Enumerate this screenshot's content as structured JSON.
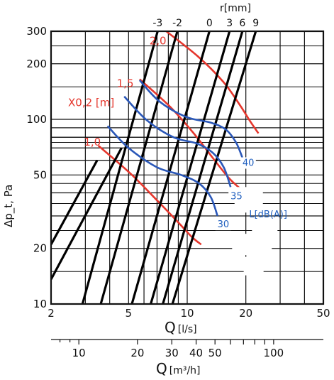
{
  "chart_data": {
    "type": "line",
    "title": "",
    "x_scale": "log",
    "y_scale": "log",
    "xlim": [
      2,
      50
    ],
    "ylim": [
      10,
      300
    ],
    "xlabel": "Q",
    "xlabel_unit": "[l/s]",
    "ylabel": "Δp_t, Pa",
    "x_ticks": [
      "2",
      "5",
      "10",
      "20",
      "50"
    ],
    "x_tick_values": [
      2,
      5,
      10,
      20,
      50
    ],
    "y_ticks": [
      "10",
      "20",
      "50",
      "100",
      "200",
      "300"
    ],
    "y_tick_values": [
      10,
      20,
      50,
      100,
      200,
      300
    ],
    "secondary_x_axis": {
      "label": "Q",
      "unit": "[m³/h]",
      "ticks": [
        "10",
        "20",
        "30",
        "40",
        "50",
        "100"
      ],
      "tick_values": [
        10,
        20,
        30,
        40,
        50,
        100
      ]
    },
    "top_axis": {
      "label": "r[mm]",
      "ticks": [
        "-3",
        "-2",
        "0",
        "3",
        "6",
        "9"
      ]
    },
    "black_lines_label": "r[mm]",
    "black_lines": [
      {
        "name": "-3",
        "x": [
          2.9,
          7.05
        ],
        "y": [
          10,
          300
        ]
      },
      {
        "name": "-2",
        "x": [
          3.6,
          8.9
        ],
        "y": [
          10,
          300
        ]
      },
      {
        "name": "0",
        "x": [
          5.2,
          13.0
        ],
        "y": [
          10,
          300
        ]
      },
      {
        "name": "3",
        "x": [
          6.5,
          16.5
        ],
        "y": [
          10,
          300
        ]
      },
      {
        "name": "6",
        "x": [
          7.5,
          19.2
        ],
        "y": [
          10,
          300
        ]
      },
      {
        "name": "9",
        "x": [
          8.4,
          22.5
        ],
        "y": [
          10,
          300
        ]
      },
      {
        "name": "",
        "x": [
          2.0,
          3.45
        ],
        "y": [
          21,
          60
        ]
      },
      {
        "name": "",
        "x": [
          2.0,
          4.6
        ],
        "y": [
          13.6,
          70
        ]
      }
    ],
    "red_series_label": "X0,2 [m]",
    "red_series": [
      {
        "name": "2,0",
        "x": [
          7.8,
          11.3,
          15.3,
          18.6,
          21.0,
          23.2
        ],
        "y": [
          300,
          220,
          160,
          120,
          98,
          84
        ]
      },
      {
        "name": "1,5",
        "x": [
          5.7,
          8.1,
          10.7,
          13.5,
          16.4,
          19.3
        ],
        "y": [
          165,
          118,
          85,
          62,
          48,
          41
        ]
      },
      {
        "name": "1,0",
        "x": [
          3.5,
          5.1,
          6.9,
          8.9,
          10.6,
          11.8
        ],
        "y": [
          72,
          51,
          37,
          28,
          23,
          21
        ]
      }
    ],
    "blue_series_label": "L[dB(A)]",
    "blue_series": [
      {
        "name": "40",
        "x": [
          5.7,
          7.2,
          9.9,
          13.2,
          15.8,
          17.8,
          19.2
        ],
        "y": [
          163,
          125,
          103,
          96,
          88,
          75,
          62
        ]
      },
      {
        "name": "35",
        "x": [
          4.75,
          6.2,
          8.5,
          11.2,
          13.5,
          15.4,
          16.7
        ],
        "y": [
          133,
          99,
          80,
          74,
          66,
          55,
          43
        ]
      },
      {
        "name": "30",
        "x": [
          3.9,
          5.0,
          7.0,
          9.3,
          11.5,
          13.2,
          14.3
        ],
        "y": [
          92,
          70,
          55,
          50,
          45,
          38,
          30
        ]
      }
    ]
  }
}
